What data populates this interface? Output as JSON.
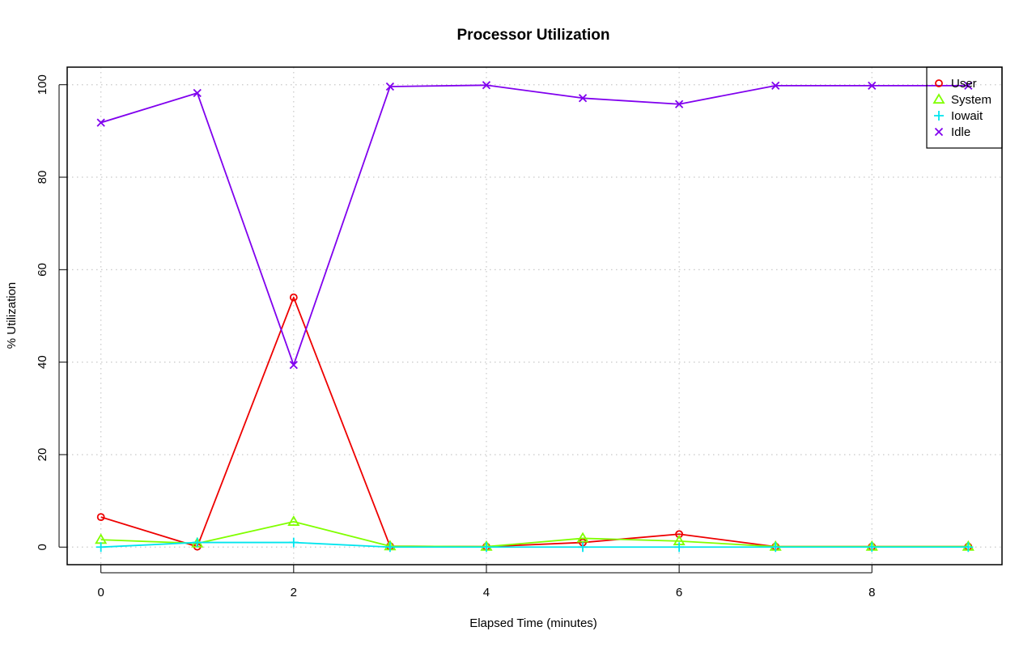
{
  "chart_data": {
    "type": "line",
    "title": "Processor Utilization",
    "xlabel": "Elapsed Time (minutes)",
    "ylabel": "% Utilization",
    "x": [
      0,
      1,
      2,
      3,
      4,
      5,
      6,
      7,
      8,
      9
    ],
    "xlim": [
      -0.35,
      9.35
    ],
    "ylim": [
      -3.8,
      103.8
    ],
    "xticks": [
      "0",
      "2",
      "4",
      "6",
      "8"
    ],
    "yticks": [
      "0",
      "20",
      "40",
      "60",
      "80",
      "100"
    ],
    "grid": true,
    "legend_position": "top-right",
    "series": [
      {
        "name": "User",
        "color": "#ee0000",
        "marker": "circle",
        "values": [
          6.5,
          0.1,
          54.0,
          0.2,
          0.1,
          1.0,
          2.8,
          0.1,
          0.1,
          0.1
        ]
      },
      {
        "name": "System",
        "color": "#80ff00",
        "marker": "triangle",
        "values": [
          1.6,
          0.8,
          5.5,
          0.2,
          0.1,
          1.9,
          1.3,
          0.1,
          0.1,
          0.1
        ]
      },
      {
        "name": "Iowait",
        "color": "#00e5ee",
        "marker": "plus",
        "values": [
          0.0,
          1.0,
          1.0,
          0.0,
          0.0,
          0.0,
          0.0,
          0.0,
          0.0,
          0.0
        ]
      },
      {
        "name": "Idle",
        "color": "#8000ee",
        "marker": "cross",
        "values": [
          91.8,
          98.2,
          39.4,
          99.6,
          99.9,
          97.1,
          95.8,
          99.8,
          99.8,
          99.8
        ]
      }
    ]
  }
}
